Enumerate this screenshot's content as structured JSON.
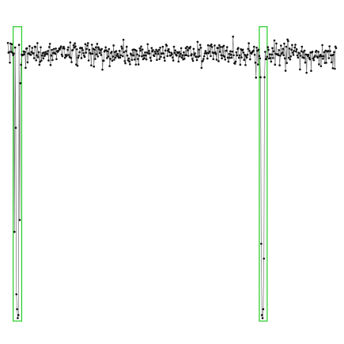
{
  "chart_data": {
    "type": "line",
    "title": "",
    "xlabel": "",
    "ylabel": "",
    "grid": false,
    "x_range": [
      0,
      500
    ],
    "y_range": [
      0,
      1
    ],
    "series": [
      {
        "baseline": 0.9,
        "noise": 0.018,
        "seed": 1234,
        "dips": [
          {
            "x": 10,
            "y": 0.3
          },
          {
            "x": 11,
            "y": 0.92
          },
          {
            "x": 12,
            "y": 0.65
          },
          {
            "x": 13,
            "y": 0.09
          },
          {
            "x": 14,
            "y": 0.04
          },
          {
            "x": 15,
            "y": 0.01
          },
          {
            "x": 16,
            "y": 0.02
          },
          {
            "x": 18,
            "y": 0.34
          },
          {
            "x": 19,
            "y": 0.8
          },
          {
            "x": 385,
            "y": 0.82
          },
          {
            "x": 386,
            "y": 0.26
          },
          {
            "x": 387,
            "y": 0.02
          },
          {
            "x": 388,
            "y": 0.01
          },
          {
            "x": 389,
            "y": 0.04
          },
          {
            "x": 390,
            "y": 0.21
          },
          {
            "x": 391,
            "y": 0.82
          }
        ]
      }
    ],
    "highlight_regions": [
      {
        "x0": 8,
        "x1": 21,
        "y0": 0.0,
        "y1": 0.99
      },
      {
        "x0": 383,
        "x1": 395,
        "y0": 0.0,
        "y1": 0.99
      }
    ],
    "colors": {
      "line": "#777777",
      "marker": "#111111",
      "highlight": "#22cc22",
      "background": "#ffffff"
    }
  }
}
